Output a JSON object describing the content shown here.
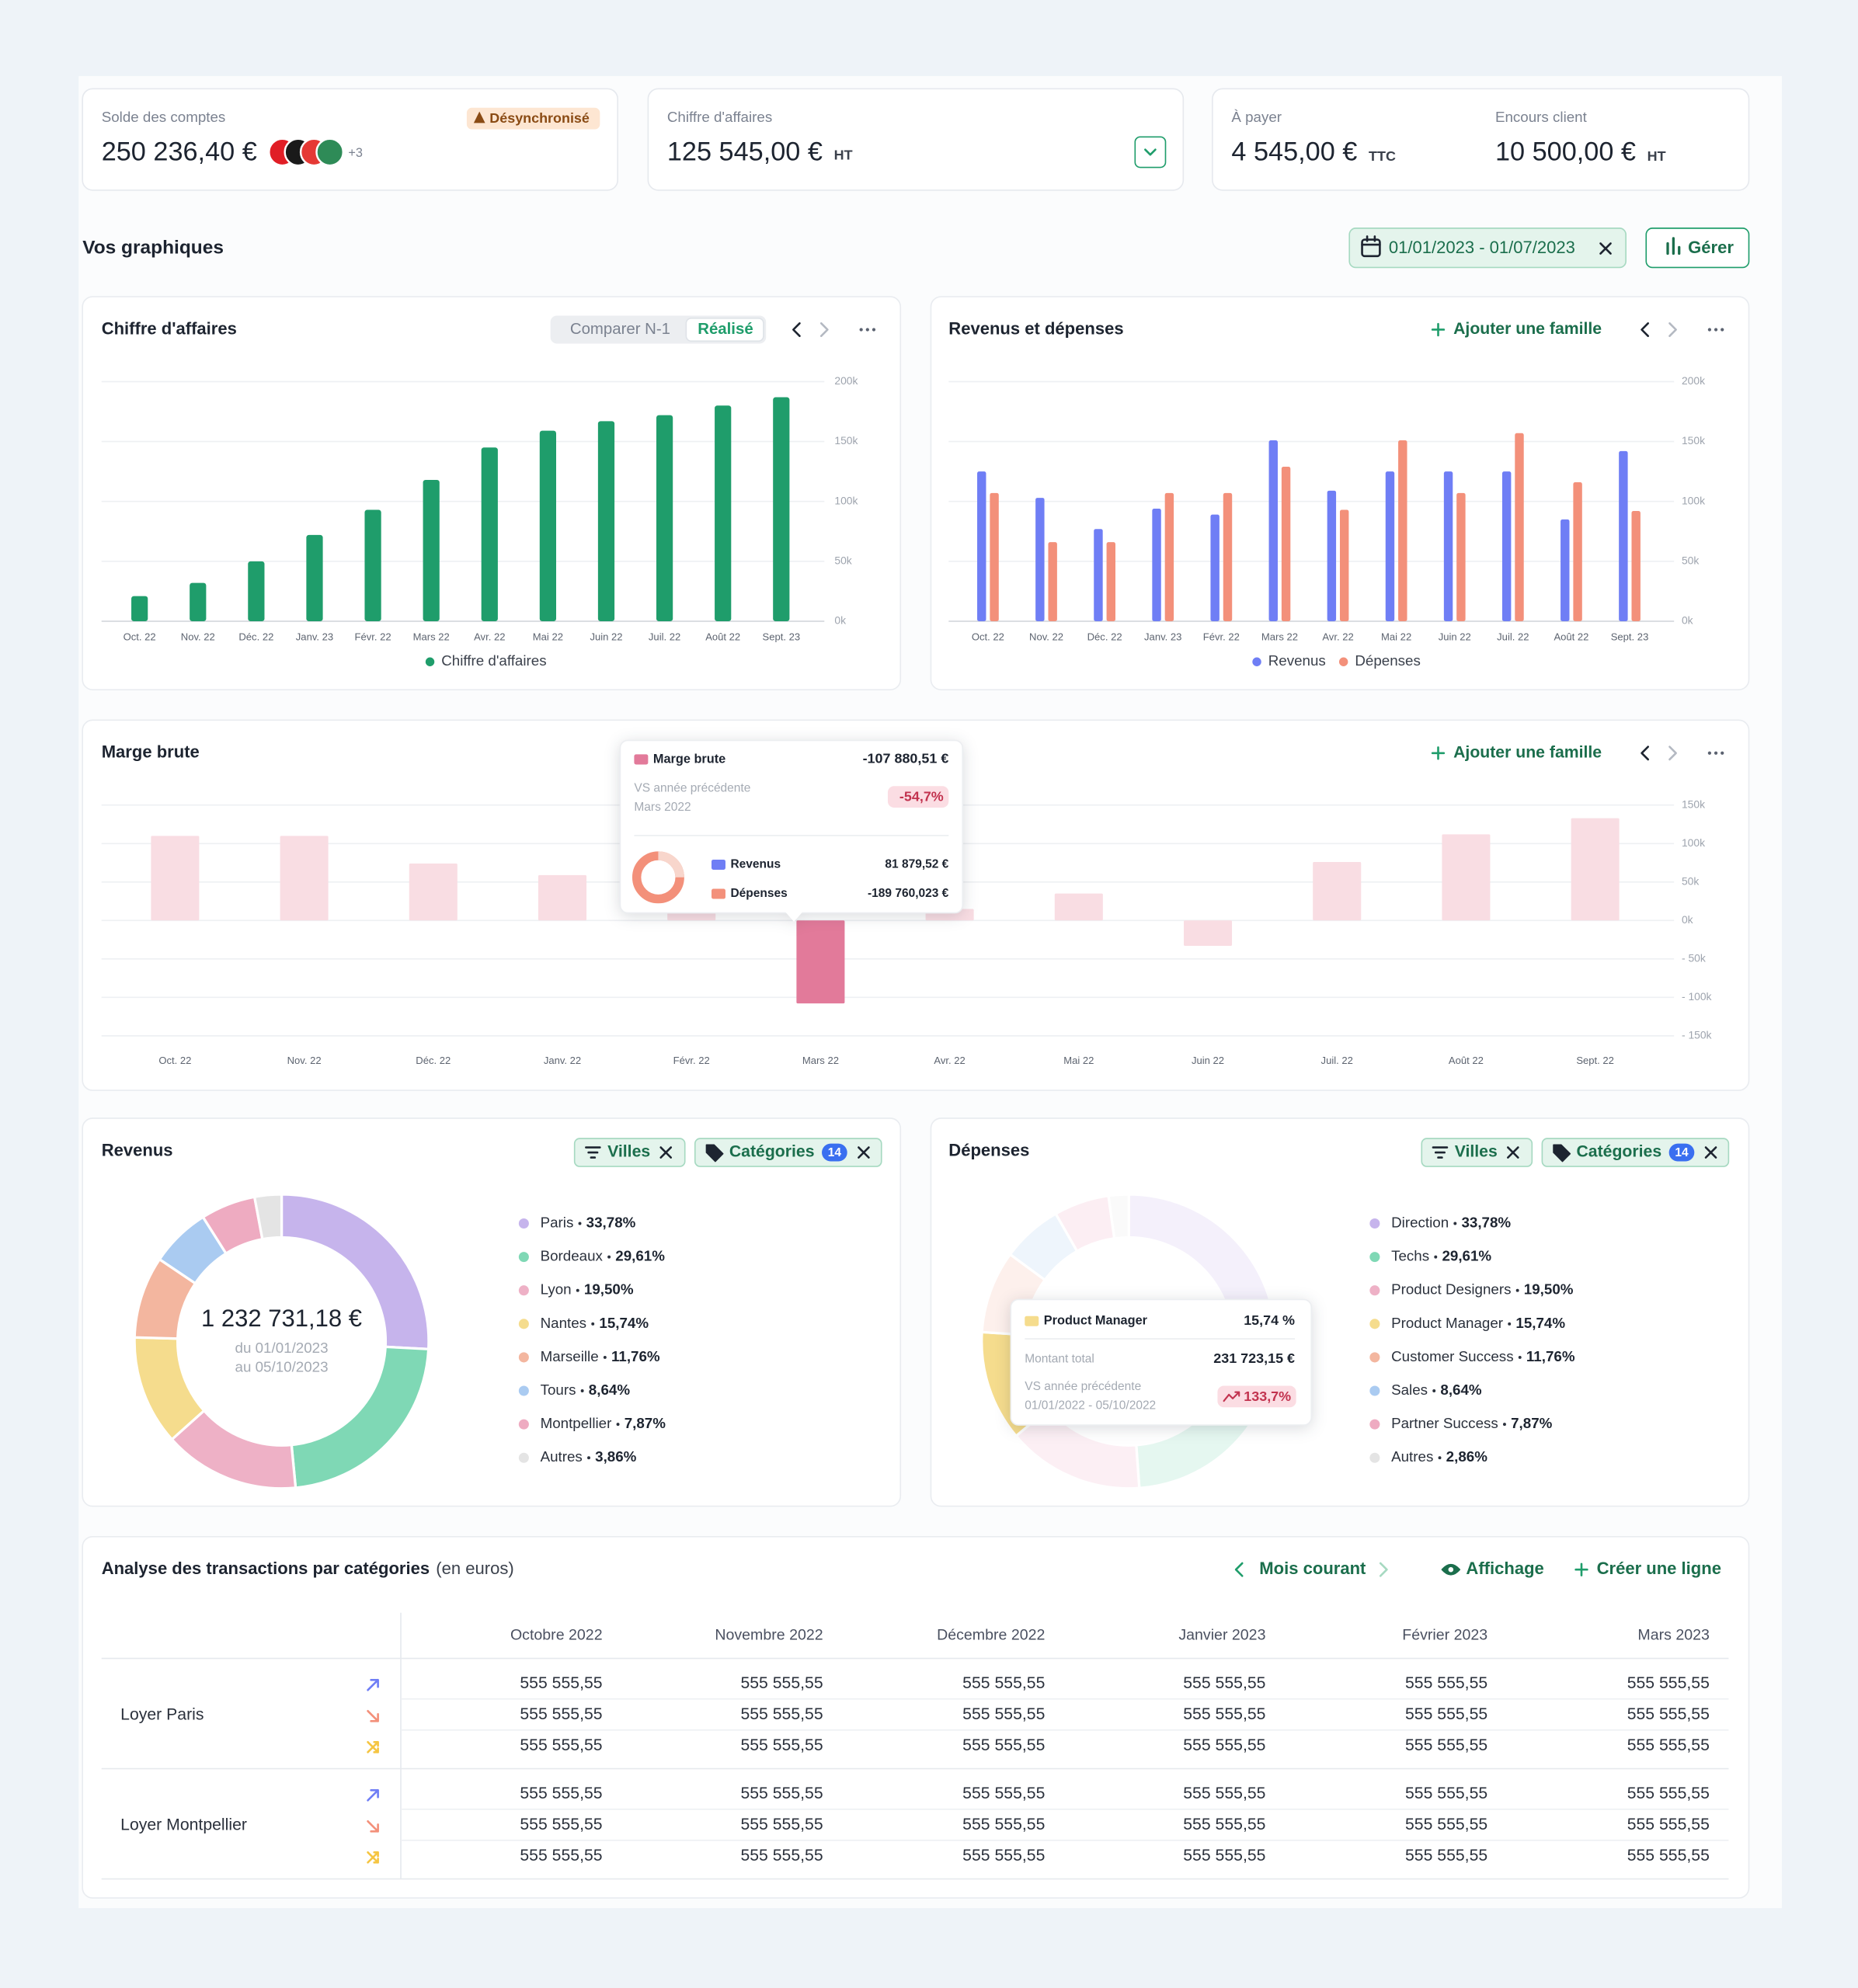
{
  "cards": {
    "balance": {
      "label": "Solde des comptes",
      "value": "250 236,40 €",
      "status": "Désynchronisé",
      "more_banks": "+3"
    },
    "revenue": {
      "label": "Chiffre d'affaires",
      "value": "125 545,00 €",
      "unit": "HT"
    },
    "payable": {
      "label": "À payer",
      "value": "4 545,00 €",
      "unit": "TTC"
    },
    "receivable": {
      "label": "Encours client",
      "value": "10 500,00 €",
      "unit": "HT"
    }
  },
  "section": {
    "title": "Vos graphiques",
    "date_range": "01/01/2023 - 01/07/2023",
    "manage": "Gérer"
  },
  "chart_data": [
    {
      "type": "bar",
      "title": "Chiffre d'affaires",
      "toggle": [
        "Comparer N-1",
        "Réalisé"
      ],
      "categories": [
        "Oct. 22",
        "Nov. 22",
        "Déc. 22",
        "Janv. 23",
        "Févr. 22",
        "Mars 22",
        "Avr. 22",
        "Mai 22",
        "Juin 22",
        "Juil. 22",
        "Août 22",
        "Sept. 23"
      ],
      "series": [
        {
          "name": "Chiffre d'affaires",
          "color": "#1f9d6b",
          "values": [
            21,
            32,
            50,
            72,
            93,
            118,
            145,
            159,
            167,
            172,
            180,
            187
          ]
        }
      ],
      "ylim": [
        0,
        200
      ],
      "yticks": [
        {
          "value": 0,
          "label": "0k"
        },
        {
          "value": 50,
          "label": "50k"
        },
        {
          "value": 100,
          "label": "100k"
        },
        {
          "value": 150,
          "label": "150k"
        },
        {
          "value": 200,
          "label": "200k"
        }
      ],
      "grid": true,
      "legend": "bottom"
    },
    {
      "type": "bar",
      "title": "Revenus et dépenses",
      "action": "Ajouter une famille",
      "categories": [
        "Oct. 22",
        "Nov. 22",
        "Déc. 22",
        "Janv. 23",
        "Févr. 22",
        "Mars 22",
        "Avr. 22",
        "Mai 22",
        "Juin 22",
        "Juil. 22",
        "Août 22",
        "Sept. 23"
      ],
      "series": [
        {
          "name": "Revenus",
          "color": "#6f7ef5",
          "values": [
            125,
            103,
            77,
            94,
            89,
            151,
            109,
            125,
            125,
            125,
            85,
            142
          ]
        },
        {
          "name": "Dépenses",
          "color": "#f3907a",
          "values": [
            107,
            66,
            66,
            107,
            107,
            129,
            93,
            151,
            107,
            157,
            116,
            92
          ]
        }
      ],
      "ylim": [
        0,
        200
      ],
      "yticks": [
        {
          "value": 0,
          "label": "0k"
        },
        {
          "value": 50,
          "label": "50k"
        },
        {
          "value": 100,
          "label": "100k"
        },
        {
          "value": 150,
          "label": "150k"
        },
        {
          "value": 200,
          "label": "200k"
        }
      ],
      "grid": true,
      "legend": "bottom"
    },
    {
      "type": "bar",
      "title": "Marge brute",
      "action": "Ajouter une famille",
      "categories": [
        "Oct. 22",
        "Nov. 22",
        "Déc. 22",
        "Janv. 22",
        "Févr. 22",
        "Mars 22",
        "Avr. 22",
        "Mai 22",
        "Juin 22",
        "Juil. 22",
        "Août 22",
        "Sept. 22"
      ],
      "series": [
        {
          "name": "Marge brute",
          "color": "#f9dde3",
          "highlight_color": "#e27a9a",
          "values": [
            110,
            110,
            74,
            59,
            10,
            -107.88,
            15,
            35,
            -33,
            76,
            112,
            133
          ]
        }
      ],
      "highlight_index": 5,
      "ylim": [
        -150,
        150
      ],
      "yticks": [
        {
          "value": 150,
          "label": "150k"
        },
        {
          "value": 100,
          "label": "100k"
        },
        {
          "value": 50,
          "label": "50k"
        },
        {
          "value": 0,
          "label": "0k"
        },
        {
          "value": -50,
          "label": "- 50k"
        },
        {
          "value": -100,
          "label": "- 100k"
        },
        {
          "value": -150,
          "label": "- 150k"
        }
      ],
      "grid": true,
      "legend": "none",
      "tooltip": {
        "value": "-107 880,51 €",
        "compare_label": "VS année précédente",
        "period": "Mars 2022",
        "change": "-54,7%",
        "rows": [
          {
            "name": "Revenus",
            "value": "81 879,52 €",
            "color": "#6f7ef5"
          },
          {
            "name": "Dépenses",
            "value": "-189 760,023 €",
            "color": "#f3907a"
          }
        ]
      }
    },
    {
      "type": "donut",
      "title": "Revenus",
      "filters": [
        "Villes",
        "Catégories"
      ],
      "filter_count": "14",
      "center": {
        "value": "1 232 731,18 €",
        "from": "du 01/01/2023",
        "to": "au 05/10/2023"
      },
      "categories": [
        "Paris",
        "Bordeaux",
        "Lyon",
        "Nantes",
        "Marseille",
        "Tours",
        "Montpellier",
        "Autres"
      ],
      "values": [
        33.78,
        29.61,
        19.5,
        15.74,
        11.76,
        8.64,
        7.87,
        3.86
      ],
      "value_labels": [
        "33,78%",
        "29,61%",
        "19,50%",
        "15,74%",
        "11,76%",
        "8,64%",
        "7,87%",
        "3,86%"
      ],
      "colors": [
        "#c6b4ec",
        "#7fd8b5",
        "#eeb1c6",
        "#f5dc8d",
        "#f3b69f",
        "#aacbf1",
        "#eeabc1",
        "#e4e4e4"
      ]
    },
    {
      "type": "donut",
      "title": "Dépenses",
      "filters": [
        "Villes",
        "Catégories"
      ],
      "filter_count": "14",
      "categories": [
        "Direction",
        "Techs",
        "Product Designers",
        "Product Manager",
        "Customer Success",
        "Sales",
        "Partner Success",
        "Autres"
      ],
      "values": [
        33.78,
        29.61,
        19.5,
        15.74,
        11.76,
        8.64,
        7.87,
        2.86
      ],
      "value_labels": [
        "33,78%",
        "29,61%",
        "19,50%",
        "15,74%",
        "11,76%",
        "8,64%",
        "7,87%",
        "2,86%"
      ],
      "colors": [
        "#c6b4ec",
        "#7fd8b5",
        "#eeb1c6",
        "#f5dc8d",
        "#f3b69f",
        "#aacbf1",
        "#eeabc1",
        "#e4e4e4"
      ],
      "highlight_index": 3,
      "tooltip": {
        "share": "15,74 %",
        "total_label": "Montant total",
        "total": "231 723,15 €",
        "compare_label": "VS année précédente",
        "period": "01/01/2022 - 05/10/2022",
        "change": "133,7%"
      }
    }
  ],
  "table": {
    "title": "Analyse des transactions par catégories",
    "unit": "(en euros)",
    "period": "Mois courant",
    "view": "Affichage",
    "add_row": "Créer une ligne",
    "columns": [
      "Octobre 2022",
      "Novembre 2022",
      "Décembre 2022",
      "Janvier 2023",
      "Février 2023",
      "Mars 2023"
    ],
    "rows": [
      {
        "label": "Loyer Paris",
        "lines": [
          [
            "555 555,55",
            "555 555,55",
            "555 555,55",
            "555 555,55",
            "555 555,55",
            "555 555,55"
          ],
          [
            "555 555,55",
            "555 555,55",
            "555 555,55",
            "555 555,55",
            "555 555,55",
            "555 555,55"
          ],
          [
            "555 555,55",
            "555 555,55",
            "555 555,55",
            "555 555,55",
            "555 555,55",
            "555 555,55"
          ]
        ]
      },
      {
        "label": "Loyer Montpellier",
        "lines": [
          [
            "555 555,55",
            "555 555,55",
            "555 555,55",
            "555 555,55",
            "555 555,55",
            "555 555,55"
          ],
          [
            "555 555,55",
            "555 555,55",
            "555 555,55",
            "555 555,55",
            "555 555,55",
            "555 555,55"
          ],
          [
            "555 555,55",
            "555 555,55",
            "555 555,55",
            "555 555,55",
            "555 555,55",
            "555 555,55"
          ]
        ]
      }
    ]
  }
}
